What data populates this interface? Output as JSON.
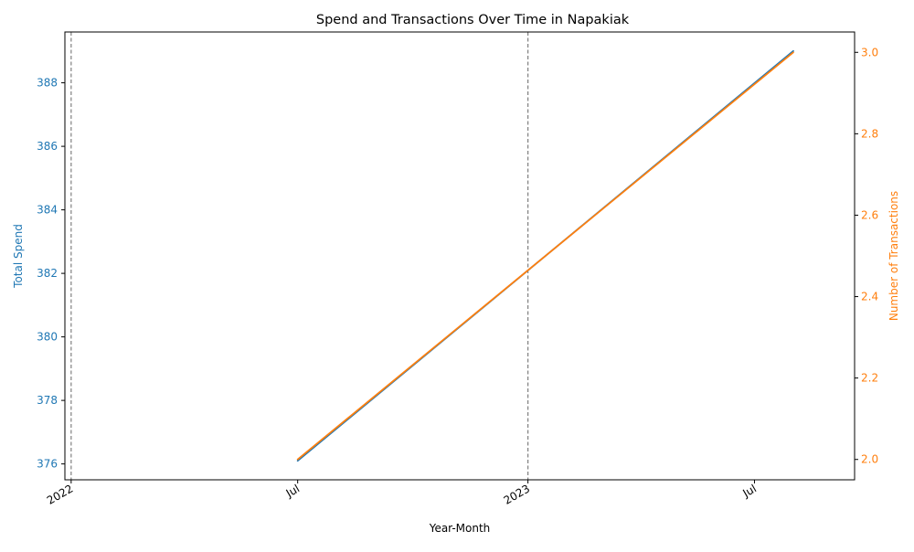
{
  "chart_data": {
    "type": "line",
    "title": "Spend and Transactions Over Time in Napakiak",
    "xlabel": "Year-Month",
    "ylabel_left": "Total Spend",
    "ylabel_right": "Number of Transactions",
    "x_range": [
      "2021-12-27",
      "2023-09-19"
    ],
    "x_ticks": [
      {
        "date": "2022-01-01",
        "label": "2022"
      },
      {
        "date": "2022-07-01",
        "label": "Jul"
      },
      {
        "date": "2023-01-01",
        "label": "2023"
      },
      {
        "date": "2023-07-01",
        "label": "Jul"
      }
    ],
    "year_lines": [
      "2022-01-01",
      "2023-01-01"
    ],
    "left_axis": {
      "ylim": [
        375.5,
        389.6
      ],
      "ticks": [
        376,
        378,
        380,
        382,
        384,
        386,
        388
      ],
      "color": "#1f77b4"
    },
    "right_axis": {
      "ylim": [
        1.95,
        3.05
      ],
      "ticks": [
        2.0,
        2.2,
        2.4,
        2.6,
        2.8,
        3.0
      ],
      "tick_labels": [
        "2.0",
        "2.2",
        "2.4",
        "2.6",
        "2.8",
        "3.0"
      ],
      "color": "#ff7f0e"
    },
    "series": [
      {
        "axis": "left",
        "color": "#1f77b4",
        "points": [
          {
            "x": "2022-07-01",
            "y": 376.1
          },
          {
            "x": "2023-08-01",
            "y": 389.0
          }
        ]
      },
      {
        "axis": "right",
        "color": "#ff7f0e",
        "points": [
          {
            "x": "2022-07-01",
            "y": 2.0
          },
          {
            "x": "2023-08-01",
            "y": 3.0
          }
        ]
      }
    ],
    "grid": false
  }
}
